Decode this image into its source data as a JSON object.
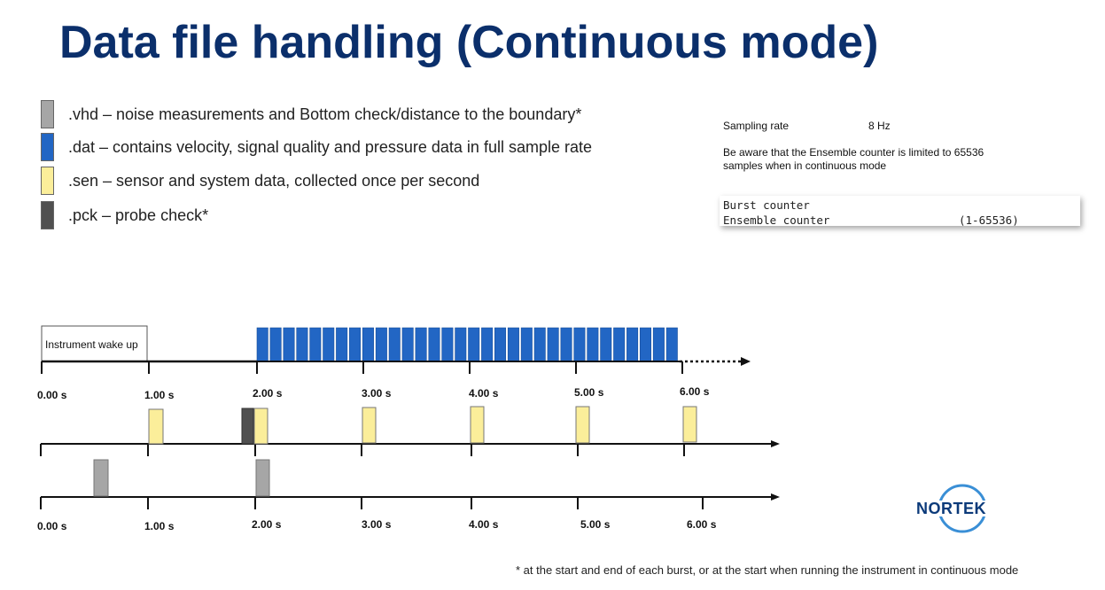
{
  "title": "Data file handling (Continuous mode)",
  "legend": [
    {
      "label": ".vhd – noise measurements and Bottom check/distance to the boundary*",
      "color": "#a6a6a6"
    },
    {
      "label": ".dat – contains velocity, signal quality and pressure data in full sample rate",
      "color": "#2266c4"
    },
    {
      "label": ".sen – sensor and system data, collected once per second",
      "color": "#fbee9a"
    },
    {
      "label": ".pck – probe check*",
      "color": "#505050"
    }
  ],
  "info": {
    "sampling_label": "Sampling rate",
    "sampling_value": "8 Hz",
    "note_line1": "Be aware that the Ensemble counter is limited to 65536",
    "note_line2": "samples when in continuous mode"
  },
  "console": {
    "line1": "Burst counter",
    "line2": "Ensemble counter",
    "line2_range": "(1-65536)"
  },
  "timeline": {
    "wake_label": "Instrument wake up",
    "tick_labels_top": [
      "0.00 s",
      "1.00 s",
      "2.00 s",
      "3.00 s",
      "4.00 s",
      "5.00 s",
      "6.00 s"
    ],
    "tick_labels_bottom": [
      "0.00 s",
      "1.00 s",
      "2.00 s",
      "3.00 s",
      "4.00 s",
      "5.00 s",
      "6.00 s"
    ],
    "dat_block_count": 32,
    "sen_times_s": [
      1,
      2,
      3,
      4,
      5,
      6
    ],
    "pck_times_s": [
      2
    ],
    "vhd_times_s": [
      0.5,
      2
    ]
  },
  "footnote": "* at the start and end of each burst, or at the start when running the instrument in continuous  mode",
  "logo_text": "NORTEK",
  "colors": {
    "title": "#0b2f6b",
    "dat": "#2266c4",
    "sen": "#fbee9a",
    "vhd": "#a6a6a6",
    "pck": "#505050",
    "logo": "#0b3a7a"
  }
}
